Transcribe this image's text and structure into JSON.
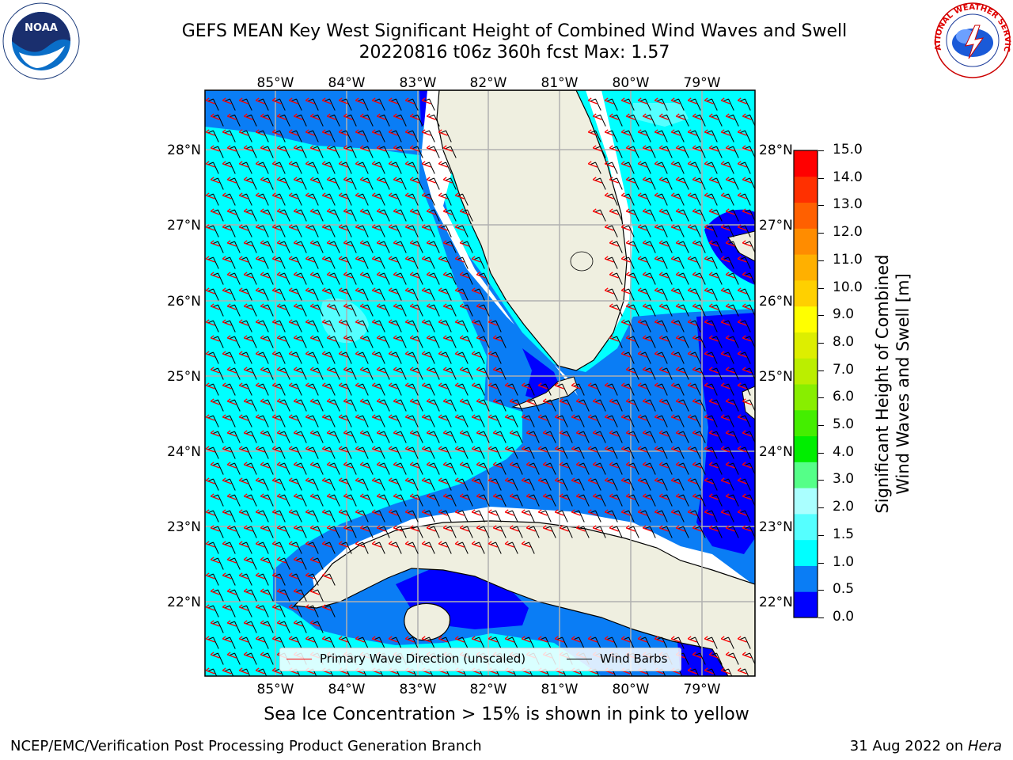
{
  "title": {
    "line1": "GEFS MEAN Key West Significant Height of Combined Wind Waves and Swell",
    "line2": "20220816 t06z 360h fcst   Max: 1.57"
  },
  "logos": {
    "left": {
      "name": "noaa-logo",
      "text": "NOAA"
    },
    "right": {
      "name": "nws-logo",
      "text": "NATIONAL WEATHER SERVICE"
    }
  },
  "map": {
    "lon_labels": [
      "85°W",
      "84°W",
      "83°W",
      "82°W",
      "81°W",
      "80°W",
      "79°W"
    ],
    "lat_labels": [
      "28°N",
      "27°N",
      "26°N",
      "25°N",
      "24°N",
      "23°N",
      "22°N"
    ],
    "ocean_colors": {
      "0.0-0.5": "#0000ff",
      "0.5-1.0": "#0a7df5",
      "1.0-1.5": "#00ffff",
      "1.5-2.0": "#55ffff"
    },
    "land_color": "#efefe0",
    "grid": true
  },
  "legend": {
    "wave_label": "Primary Wave Direction (unscaled)",
    "wave_color": "#ff0000",
    "wind_label": "Wind Barbs",
    "wind_color": "#000000"
  },
  "colorbar": {
    "title_line1": "Significant Height of Combined",
    "title_line2": "Wind Waves and Swell [m]",
    "ticks": [
      "0.0",
      "0.5",
      "1.0",
      "1.5",
      "2.0",
      "3.0",
      "4.0",
      "5.0",
      "6.0",
      "7.0",
      "8.0",
      "9.0",
      "10.0",
      "11.0",
      "12.0",
      "13.0",
      "14.0",
      "15.0"
    ],
    "colors": [
      "#0000ff",
      "#0a7df5",
      "#00ffff",
      "#55ffff",
      "#aaffff",
      "#55ff88",
      "#00ee00",
      "#44ee00",
      "#88ee00",
      "#bbee00",
      "#ddee00",
      "#ffff00",
      "#ffd000",
      "#ffb000",
      "#ff8c00",
      "#ff6000",
      "#ff3000",
      "#ff0000"
    ]
  },
  "chart_data": {
    "type": "map",
    "title": "GEFS MEAN Key West Significant Height of Combined Wind Waves and Swell",
    "subtitle": "20220816 t06z 360h fcst   Max: 1.57",
    "variable": "Significant Height of Combined Wind Waves and Swell [m]",
    "max": 1.57,
    "lon_range": [
      -86,
      -78.3
    ],
    "lat_range": [
      21,
      28.8
    ],
    "colorbar_range": [
      0,
      15
    ]
  },
  "note": "Sea Ice Concentration > 15% is shown in pink to yellow",
  "footer": {
    "left": "NCEP/EMC/Verification Post Processing Product Generation Branch",
    "right_date": "31 Aug 2022 on ",
    "right_host": "Hera"
  }
}
